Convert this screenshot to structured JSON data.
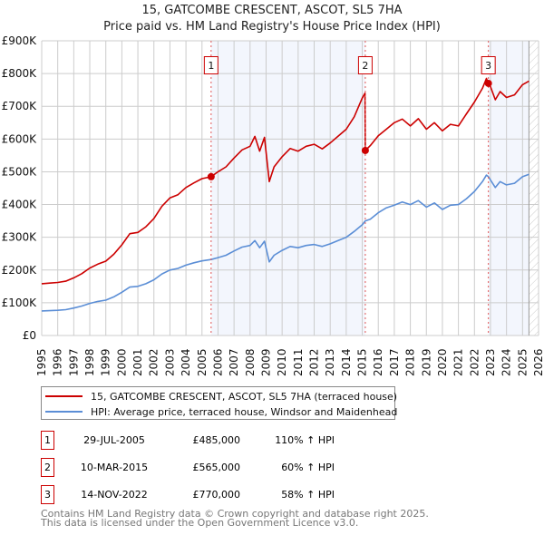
{
  "chart_data": {
    "type": "line",
    "title": "15, GATCOMBE CRESCENT, ASCOT, SL5 7HA",
    "subtitle": "Price paid vs. HM Land Registry's House Price Index (HPI)",
    "xlim": [
      1995,
      2026
    ],
    "ylim": [
      0,
      900000
    ],
    "x_ticks": [
      "1995",
      "1996",
      "1997",
      "1998",
      "1999",
      "2000",
      "2001",
      "2002",
      "2003",
      "2004",
      "2005",
      "2006",
      "2007",
      "2008",
      "2009",
      "2010",
      "2011",
      "2012",
      "2013",
      "2014",
      "2015",
      "2016",
      "2017",
      "2018",
      "2019",
      "2020",
      "2021",
      "2022",
      "2023",
      "2024",
      "2025",
      "2026"
    ],
    "y_ticks": [
      {
        "value": 0,
        "label": "£0"
      },
      {
        "value": 100000,
        "label": "£100K"
      },
      {
        "value": 200000,
        "label": "£200K"
      },
      {
        "value": 300000,
        "label": "£300K"
      },
      {
        "value": 400000,
        "label": "£400K"
      },
      {
        "value": 500000,
        "label": "£500K"
      },
      {
        "value": 600000,
        "label": "£600K"
      },
      {
        "value": 700000,
        "label": "£700K"
      },
      {
        "value": 800000,
        "label": "£800K"
      },
      {
        "value": 900000,
        "label": "£900K"
      }
    ],
    "grid": true,
    "data_end": 2025.4,
    "series": [
      {
        "name": "15, GATCOMBE CRESCENT, ASCOT, SL5 7HA (terraced house)",
        "color": "#cc0000",
        "x": [
          1995.0,
          1995.5,
          1996.0,
          1996.5,
          1997.0,
          1997.5,
          1998.0,
          1998.5,
          1999.0,
          1999.5,
          2000.0,
          2000.5,
          2001.0,
          2001.5,
          2002.0,
          2002.5,
          2003.0,
          2003.5,
          2004.0,
          2004.5,
          2005.0,
          2005.57,
          2006.0,
          2006.5,
          2007.0,
          2007.5,
          2008.0,
          2008.3,
          2008.6,
          2008.9,
          2009.2,
          2009.5,
          2010.0,
          2010.5,
          2011.0,
          2011.5,
          2012.0,
          2012.5,
          2013.0,
          2013.5,
          2014.0,
          2014.5,
          2015.0,
          2015.17,
          2015.19,
          2015.5,
          2016.0,
          2016.5,
          2017.0,
          2017.5,
          2018.0,
          2018.5,
          2019.0,
          2019.5,
          2020.0,
          2020.5,
          2021.0,
          2021.5,
          2022.0,
          2022.5,
          2022.75,
          2022.87,
          2023.0,
          2023.3,
          2023.6,
          2024.0,
          2024.5,
          2025.0,
          2025.4
        ],
        "values": [
          158000,
          160000,
          162000,
          166000,
          176000,
          189000,
          206000,
          218000,
          227000,
          248000,
          277000,
          311000,
          315000,
          332000,
          357000,
          395000,
          420000,
          430000,
          452000,
          466000,
          479000,
          485000,
          500000,
          515000,
          542000,
          567000,
          578000,
          608000,
          563000,
          605000,
          470000,
          515000,
          546000,
          571000,
          563000,
          578000,
          584000,
          570000,
          588000,
          609000,
          630000,
          668000,
          725000,
          740000,
          565000,
          580000,
          610000,
          630000,
          650000,
          661000,
          640000,
          662000,
          630000,
          650000,
          625000,
          645000,
          640000,
          677000,
          713000,
          755000,
          785000,
          770000,
          760000,
          720000,
          745000,
          727000,
          735000,
          766000,
          777000
        ]
      },
      {
        "name": "HPI: Average price, terraced house, Windsor and Maidenhead",
        "color": "#5b8ed6",
        "x": [
          1995.0,
          1995.5,
          1996.0,
          1996.5,
          1997.0,
          1997.5,
          1998.0,
          1998.5,
          1999.0,
          1999.5,
          2000.0,
          2000.5,
          2001.0,
          2001.5,
          2002.0,
          2002.5,
          2003.0,
          2003.5,
          2004.0,
          2004.5,
          2005.0,
          2005.57,
          2006.0,
          2006.5,
          2007.0,
          2007.5,
          2008.0,
          2008.3,
          2008.6,
          2008.9,
          2009.2,
          2009.5,
          2010.0,
          2010.5,
          2011.0,
          2011.5,
          2012.0,
          2012.5,
          2013.0,
          2013.5,
          2014.0,
          2014.5,
          2015.0,
          2015.19,
          2015.5,
          2016.0,
          2016.5,
          2017.0,
          2017.5,
          2018.0,
          2018.5,
          2019.0,
          2019.5,
          2020.0,
          2020.5,
          2021.0,
          2021.5,
          2022.0,
          2022.5,
          2022.75,
          2022.87,
          2023.0,
          2023.3,
          2023.6,
          2024.0,
          2024.5,
          2025.0,
          2025.4
        ],
        "values": [
          75000,
          76000,
          77000,
          79000,
          84000,
          90000,
          98000,
          104000,
          108000,
          118000,
          132000,
          148000,
          150000,
          158000,
          170000,
          188000,
          200000,
          205000,
          215000,
          222000,
          228000,
          232000,
          238000,
          245000,
          258000,
          270000,
          275000,
          290000,
          268000,
          288000,
          225000,
          245000,
          260000,
          272000,
          268000,
          275000,
          278000,
          272000,
          280000,
          290000,
          300000,
          318000,
          338000,
          350000,
          355000,
          375000,
          390000,
          398000,
          408000,
          400000,
          412000,
          392000,
          405000,
          385000,
          398000,
          400000,
          418000,
          440000,
          470000,
          490000,
          485000,
          475000,
          452000,
          470000,
          460000,
          465000,
          485000,
          492000
        ]
      }
    ],
    "sales": [
      {
        "id": "1",
        "x": 2005.57,
        "price": 485000,
        "date": "29-JUL-2005",
        "price_label": "£485,000",
        "hpi_label": "110% ↑ HPI"
      },
      {
        "id": "2",
        "x": 2015.19,
        "price": 565000,
        "date": "10-MAR-2015",
        "price_label": "£565,000",
        "hpi_label": "60% ↑ HPI"
      },
      {
        "id": "3",
        "x": 2022.87,
        "price": 770000,
        "date": "14-NOV-2022",
        "price_label": "£770,000",
        "hpi_label": "58% ↑ HPI"
      }
    ],
    "legend_placement": "below"
  },
  "footer": {
    "line1": "Contains HM Land Registry data © Crown copyright and database right 2025.",
    "line2": "This data is licensed under the Open Government Licence v3.0."
  }
}
